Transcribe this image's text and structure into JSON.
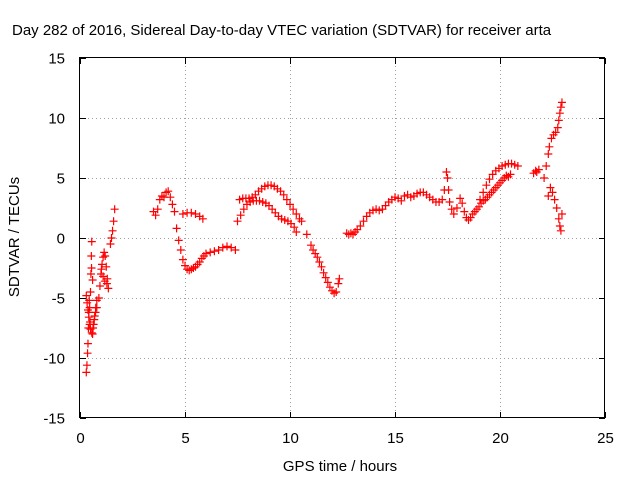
{
  "chart_data": {
    "type": "scatter",
    "title": "Day 282 of 2016, Sidereal Day-to-day VTEC variation (SDTVAR) for receiver arta",
    "xlabel": "GPS time / hours",
    "ylabel": "SDTVAR / TECUs",
    "xlim": [
      0,
      25
    ],
    "ylim": [
      -15,
      15
    ],
    "xticks": [
      "0",
      "5",
      "10",
      "15",
      "20",
      "25"
    ],
    "yticks": [
      "-15",
      "-10",
      "-5",
      "0",
      "5",
      "10",
      "15"
    ],
    "grid": true,
    "marker": "plus",
    "color": "#ff0000",
    "series": [
      {
        "name": "SDTVAR",
        "points": [
          [
            0.3,
            -11.2
          ],
          [
            0.33,
            -10.6
          ],
          [
            0.36,
            -9.6
          ],
          [
            0.38,
            -8.8
          ],
          [
            0.4,
            -7.5
          ],
          [
            0.42,
            -6.2
          ],
          [
            0.44,
            -5.2
          ],
          [
            0.46,
            -5.8
          ],
          [
            0.48,
            -7.0
          ],
          [
            0.5,
            -4.5
          ],
          [
            0.52,
            -3.0
          ],
          [
            0.54,
            -1.5
          ],
          [
            0.56,
            -0.3
          ],
          [
            0.3,
            -4.8
          ],
          [
            0.34,
            -5.4
          ],
          [
            0.38,
            -6.0
          ],
          [
            0.42,
            -6.6
          ],
          [
            0.46,
            -7.2
          ],
          [
            0.5,
            -7.6
          ],
          [
            0.56,
            -7.9
          ],
          [
            0.62,
            -7.5
          ],
          [
            0.68,
            -6.8
          ],
          [
            0.74,
            -6.2
          ],
          [
            0.8,
            -5.8
          ],
          [
            0.6,
            -8.0
          ],
          [
            0.65,
            -7.2
          ],
          [
            0.7,
            -6.5
          ],
          [
            0.75,
            -5.8
          ],
          [
            0.8,
            -5.2
          ],
          [
            0.55,
            -2.5
          ],
          [
            0.6,
            -3.5
          ],
          [
            0.9,
            -5.0
          ],
          [
            0.95,
            -4.0
          ],
          [
            1.0,
            -3.0
          ],
          [
            1.05,
            -2.2
          ],
          [
            1.1,
            -1.6
          ],
          [
            1.15,
            -1.2
          ],
          [
            1.2,
            -1.5
          ],
          [
            1.25,
            -2.4
          ],
          [
            1.3,
            -3.4
          ],
          [
            1.35,
            -4.2
          ],
          [
            1.02,
            -2.6
          ],
          [
            1.1,
            -3.2
          ],
          [
            1.18,
            -3.6
          ],
          [
            1.28,
            -3.8
          ],
          [
            1.45,
            -0.5
          ],
          [
            1.5,
            0.0
          ],
          [
            1.55,
            0.6
          ],
          [
            1.6,
            1.4
          ],
          [
            1.65,
            2.4
          ],
          [
            3.5,
            2.2
          ],
          [
            3.6,
            1.9
          ],
          [
            3.7,
            2.4
          ],
          [
            3.8,
            3.2
          ],
          [
            3.9,
            3.5
          ],
          [
            4.0,
            3.4
          ],
          [
            4.1,
            3.8
          ],
          [
            4.2,
            3.9
          ],
          [
            4.3,
            3.4
          ],
          [
            4.4,
            2.8
          ],
          [
            4.5,
            2.2
          ],
          [
            4.6,
            0.8
          ],
          [
            4.7,
            -0.2
          ],
          [
            4.8,
            -1.0
          ],
          [
            4.9,
            -1.8
          ],
          [
            5.0,
            -2.3
          ],
          [
            5.1,
            -2.6
          ],
          [
            5.2,
            -2.7
          ],
          [
            5.3,
            -2.6
          ],
          [
            5.4,
            -2.5
          ],
          [
            5.5,
            -2.4
          ],
          [
            5.6,
            -2.2
          ],
          [
            5.7,
            -2.0
          ],
          [
            5.8,
            -1.7
          ],
          [
            5.9,
            -1.5
          ],
          [
            6.0,
            -1.3
          ],
          [
            6.2,
            -1.2
          ],
          [
            6.4,
            -1.1
          ],
          [
            6.6,
            -1.0
          ],
          [
            6.8,
            -0.8
          ],
          [
            7.0,
            -0.7
          ],
          [
            7.2,
            -0.8
          ],
          [
            7.4,
            -1.0
          ],
          [
            4.9,
            2.0
          ],
          [
            5.1,
            2.1
          ],
          [
            5.3,
            2.1
          ],
          [
            5.5,
            2.0
          ],
          [
            5.7,
            1.8
          ],
          [
            5.85,
            1.6
          ],
          [
            7.5,
            1.4
          ],
          [
            7.65,
            1.9
          ],
          [
            7.8,
            2.4
          ],
          [
            7.95,
            2.8
          ],
          [
            8.1,
            3.0
          ],
          [
            8.25,
            3.1
          ],
          [
            8.4,
            3.1
          ],
          [
            8.55,
            3.1
          ],
          [
            8.7,
            3.0
          ],
          [
            8.85,
            2.9
          ],
          [
            9.0,
            2.7
          ],
          [
            9.15,
            2.4
          ],
          [
            9.3,
            2.1
          ],
          [
            9.45,
            1.8
          ],
          [
            9.6,
            1.6
          ],
          [
            9.75,
            1.5
          ],
          [
            9.9,
            1.4
          ],
          [
            10.05,
            1.2
          ],
          [
            10.2,
            0.9
          ],
          [
            10.3,
            0.5
          ],
          [
            7.6,
            3.2
          ],
          [
            7.75,
            3.3
          ],
          [
            7.9,
            3.3
          ],
          [
            8.05,
            3.3
          ],
          [
            8.2,
            3.4
          ],
          [
            8.35,
            3.6
          ],
          [
            8.5,
            3.9
          ],
          [
            8.65,
            4.1
          ],
          [
            8.8,
            4.3
          ],
          [
            8.95,
            4.4
          ],
          [
            9.1,
            4.4
          ],
          [
            9.25,
            4.3
          ],
          [
            9.4,
            4.1
          ],
          [
            9.55,
            3.9
          ],
          [
            9.7,
            3.6
          ],
          [
            9.85,
            3.2
          ],
          [
            10.0,
            2.8
          ],
          [
            10.15,
            2.4
          ],
          [
            10.3,
            2.0
          ],
          [
            10.45,
            1.6
          ],
          [
            10.55,
            1.4
          ],
          [
            10.8,
            0.3
          ],
          [
            11.0,
            -0.6
          ],
          [
            11.1,
            -1.0
          ],
          [
            11.2,
            -1.3
          ],
          [
            11.3,
            -1.6
          ],
          [
            11.4,
            -2.0
          ],
          [
            11.5,
            -2.4
          ],
          [
            11.6,
            -2.9
          ],
          [
            11.7,
            -3.3
          ],
          [
            11.8,
            -3.7
          ],
          [
            11.9,
            -4.1
          ],
          [
            12.0,
            -4.4
          ],
          [
            12.1,
            -4.6
          ],
          [
            12.2,
            -4.5
          ],
          [
            12.3,
            -3.8
          ],
          [
            12.35,
            -3.4
          ],
          [
            12.7,
            0.4
          ],
          [
            12.8,
            0.3
          ],
          [
            12.9,
            0.4
          ],
          [
            13.0,
            0.3
          ],
          [
            13.1,
            0.5
          ],
          [
            13.2,
            0.7
          ],
          [
            13.35,
            1.0
          ],
          [
            13.5,
            1.4
          ],
          [
            13.65,
            1.8
          ],
          [
            13.8,
            2.1
          ],
          [
            13.95,
            2.3
          ],
          [
            14.1,
            2.4
          ],
          [
            14.25,
            2.3
          ],
          [
            14.4,
            2.4
          ],
          [
            14.55,
            2.7
          ],
          [
            14.7,
            3.0
          ],
          [
            14.85,
            3.2
          ],
          [
            15.0,
            3.4
          ],
          [
            15.15,
            3.3
          ],
          [
            15.3,
            3.1
          ],
          [
            15.45,
            3.5
          ],
          [
            15.6,
            3.6
          ],
          [
            15.75,
            3.4
          ],
          [
            15.9,
            3.5
          ],
          [
            16.05,
            3.7
          ],
          [
            16.2,
            3.8
          ],
          [
            16.35,
            3.8
          ],
          [
            16.5,
            3.6
          ],
          [
            16.65,
            3.4
          ],
          [
            16.8,
            3.2
          ],
          [
            16.95,
            3.0
          ],
          [
            17.1,
            3.0
          ],
          [
            17.25,
            3.2
          ],
          [
            17.35,
            4.0
          ],
          [
            17.45,
            5.5
          ],
          [
            17.5,
            5.0
          ],
          [
            17.55,
            4.0
          ],
          [
            17.6,
            3.0
          ],
          [
            17.7,
            2.4
          ],
          [
            17.8,
            2.0
          ],
          [
            17.95,
            2.5
          ],
          [
            18.1,
            3.3
          ],
          [
            18.2,
            2.9
          ],
          [
            18.3,
            2.2
          ],
          [
            18.4,
            1.7
          ],
          [
            18.5,
            1.5
          ],
          [
            18.6,
            1.7
          ],
          [
            18.7,
            2.0
          ],
          [
            18.8,
            2.2
          ],
          [
            18.9,
            2.4
          ],
          [
            19.0,
            2.6
          ],
          [
            19.1,
            2.9
          ],
          [
            19.2,
            3.1
          ],
          [
            19.3,
            3.2
          ],
          [
            19.4,
            3.4
          ],
          [
            19.5,
            3.6
          ],
          [
            19.6,
            3.8
          ],
          [
            19.7,
            4.0
          ],
          [
            19.8,
            4.2
          ],
          [
            19.9,
            4.4
          ],
          [
            20.0,
            4.6
          ],
          [
            20.1,
            4.8
          ],
          [
            20.2,
            5.0
          ],
          [
            20.3,
            5.2
          ],
          [
            20.4,
            5.1
          ],
          [
            20.5,
            5.3
          ],
          [
            19.05,
            3.2
          ],
          [
            19.2,
            3.8
          ],
          [
            19.35,
            4.4
          ],
          [
            19.5,
            4.9
          ],
          [
            19.65,
            5.3
          ],
          [
            19.8,
            5.6
          ],
          [
            19.95,
            5.8
          ],
          [
            20.1,
            6.0
          ],
          [
            20.25,
            6.1
          ],
          [
            20.4,
            6.2
          ],
          [
            20.55,
            6.2
          ],
          [
            20.7,
            6.1
          ],
          [
            20.85,
            6.0
          ],
          [
            21.6,
            5.4
          ],
          [
            21.7,
            5.6
          ],
          [
            21.75,
            5.5
          ],
          [
            21.85,
            5.7
          ],
          [
            22.1,
            5.0
          ],
          [
            22.2,
            6.0
          ],
          [
            22.3,
            7.0
          ],
          [
            22.35,
            7.6
          ],
          [
            22.45,
            8.3
          ],
          [
            22.55,
            8.6
          ],
          [
            22.65,
            8.8
          ],
          [
            22.75,
            9.2
          ],
          [
            22.8,
            9.8
          ],
          [
            22.85,
            10.4
          ],
          [
            22.9,
            10.9
          ],
          [
            22.95,
            11.3
          ],
          [
            22.3,
            3.5
          ],
          [
            22.4,
            4.2
          ],
          [
            22.5,
            3.8
          ],
          [
            22.6,
            3.2
          ],
          [
            22.7,
            2.5
          ],
          [
            22.8,
            1.6
          ],
          [
            22.85,
            1.0
          ],
          [
            22.9,
            0.6
          ],
          [
            22.95,
            2.0
          ]
        ]
      }
    ]
  }
}
